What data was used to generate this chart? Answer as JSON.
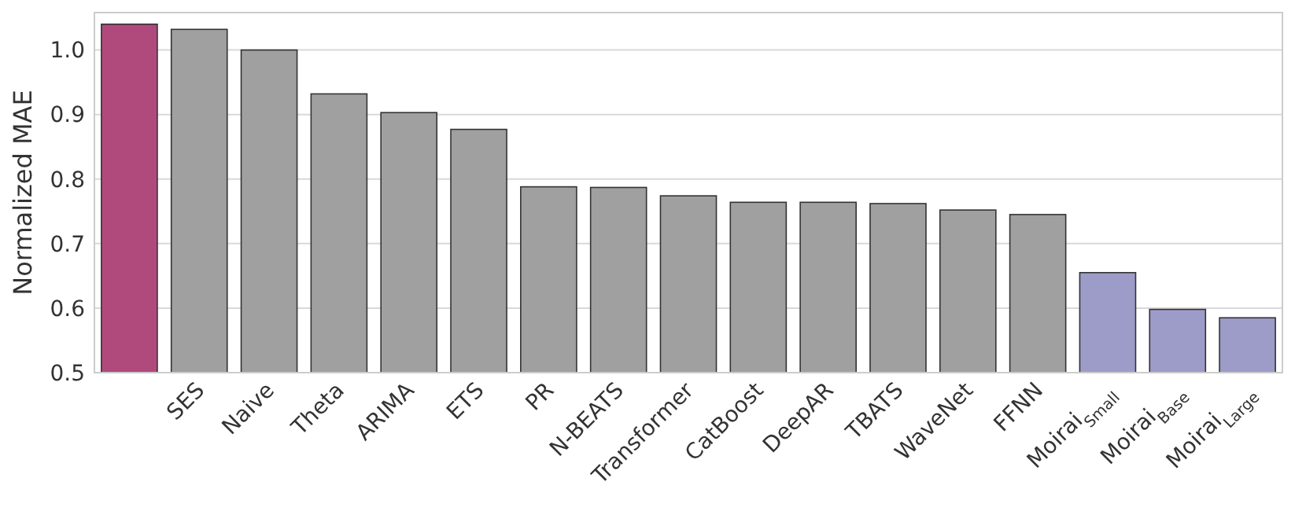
{
  "chart_data": {
    "type": "bar",
    "ylabel": "Normalized MAE",
    "categories": [
      null,
      "SES",
      "Naive",
      "Theta",
      "ARIMA",
      "ETS",
      "PR",
      "N-BEATS",
      "Transformer",
      "CatBoost",
      "DeepAR",
      "TBATS",
      "WaveNet",
      "FFNN",
      "Moirai$_{Small}$",
      "Moirai$_{Base}$",
      "Moirai$_{Large}$"
    ],
    "values": [
      1.04,
      1.032,
      1.0,
      0.932,
      0.903,
      0.877,
      0.788,
      0.787,
      0.774,
      0.764,
      0.764,
      0.762,
      0.752,
      0.745,
      0.655,
      0.598,
      0.585
    ],
    "colors": [
      "#b04a7c",
      "#a0a0a0",
      "#a0a0a0",
      "#a0a0a0",
      "#a0a0a0",
      "#a0a0a0",
      "#a0a0a0",
      "#a0a0a0",
      "#a0a0a0",
      "#a0a0a0",
      "#a0a0a0",
      "#a0a0a0",
      "#a0a0a0",
      "#a0a0a0",
      "#9d9bc8",
      "#9d9bc8",
      "#9d9bc8"
    ],
    "ylim": [
      0.5,
      1.058
    ],
    "yticks": [
      {
        "value": 0.5,
        "label": "0.5"
      },
      {
        "value": 0.6,
        "label": "0.6"
      },
      {
        "value": 0.7,
        "label": "0.7"
      },
      {
        "value": 0.8,
        "label": "0.8"
      },
      {
        "value": 0.9,
        "label": "0.9"
      },
      {
        "value": 1.0,
        "label": "1.0"
      }
    ],
    "grid": "y"
  }
}
